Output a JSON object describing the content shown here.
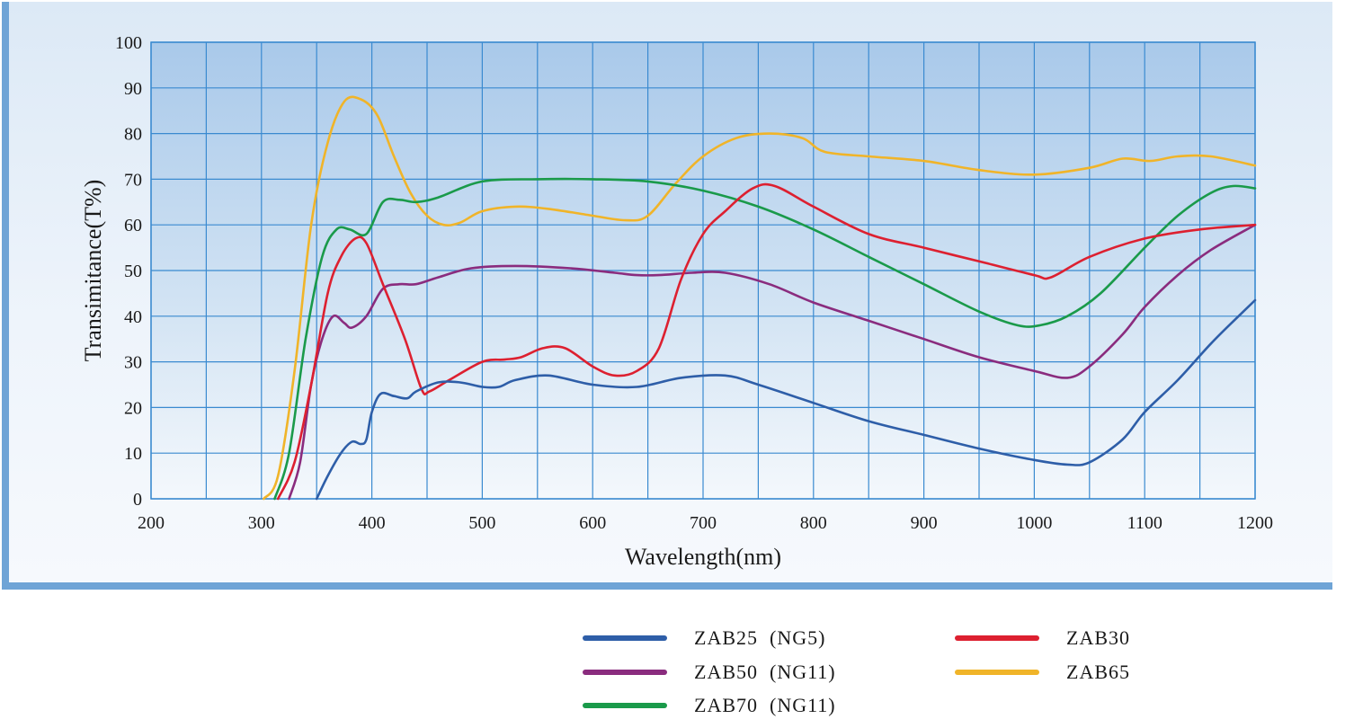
{
  "chart_data": {
    "type": "line",
    "title": "",
    "xlabel": "Wavelength(nm)",
    "ylabel": "Transimitance(T%)",
    "xlim": [
      200,
      1200
    ],
    "ylim": [
      0,
      100
    ],
    "xticks": [
      200,
      300,
      400,
      500,
      600,
      700,
      800,
      900,
      1000,
      1100,
      1200
    ],
    "yticks": [
      0,
      10,
      20,
      30,
      40,
      50,
      60,
      70,
      80,
      90,
      100
    ],
    "grid": true,
    "legend_position": "bottom-right",
    "series": [
      {
        "name": "ZAB25  (NG5)",
        "color": "#2e5ea8",
        "points": [
          [
            350,
            0
          ],
          [
            360,
            5
          ],
          [
            372,
            10
          ],
          [
            382,
            12.5
          ],
          [
            390,
            12
          ],
          [
            395,
            13
          ],
          [
            400,
            19
          ],
          [
            408,
            23
          ],
          [
            420,
            22.5
          ],
          [
            432,
            22
          ],
          [
            440,
            23.5
          ],
          [
            460,
            25.5
          ],
          [
            480,
            25.5
          ],
          [
            500,
            24.5
          ],
          [
            515,
            24.5
          ],
          [
            530,
            26
          ],
          [
            560,
            27
          ],
          [
            600,
            25
          ],
          [
            640,
            24.5
          ],
          [
            680,
            26.5
          ],
          [
            720,
            27
          ],
          [
            750,
            25
          ],
          [
            800,
            21
          ],
          [
            850,
            17
          ],
          [
            900,
            14
          ],
          [
            950,
            11
          ],
          [
            1000,
            8.5
          ],
          [
            1030,
            7.5
          ],
          [
            1050,
            8
          ],
          [
            1080,
            13
          ],
          [
            1100,
            19
          ],
          [
            1130,
            26
          ],
          [
            1160,
            34
          ],
          [
            1185,
            40
          ],
          [
            1200,
            43.5
          ]
        ]
      },
      {
        "name": "ZAB30",
        "color": "#dd2030",
        "points": [
          [
            315,
            0
          ],
          [
            330,
            8
          ],
          [
            345,
            25
          ],
          [
            360,
            45
          ],
          [
            372,
            53
          ],
          [
            385,
            57
          ],
          [
            395,
            56
          ],
          [
            410,
            47
          ],
          [
            430,
            35
          ],
          [
            445,
            24
          ],
          [
            452,
            23.5
          ],
          [
            470,
            26
          ],
          [
            500,
            30
          ],
          [
            520,
            30.5
          ],
          [
            535,
            31
          ],
          [
            555,
            33
          ],
          [
            575,
            33
          ],
          [
            600,
            29
          ],
          [
            620,
            27
          ],
          [
            640,
            28
          ],
          [
            660,
            33
          ],
          [
            680,
            48
          ],
          [
            700,
            58
          ],
          [
            720,
            63
          ],
          [
            745,
            68
          ],
          [
            765,
            68.5
          ],
          [
            800,
            64
          ],
          [
            850,
            58
          ],
          [
            900,
            55
          ],
          [
            950,
            52
          ],
          [
            1000,
            49
          ],
          [
            1015,
            48.5
          ],
          [
            1050,
            53
          ],
          [
            1100,
            57
          ],
          [
            1150,
            59
          ],
          [
            1200,
            60
          ]
        ]
      },
      {
        "name": "ZAB50  (NG11)",
        "color": "#8a2c7e",
        "points": [
          [
            325,
            0
          ],
          [
            335,
            8
          ],
          [
            345,
            25
          ],
          [
            355,
            35
          ],
          [
            365,
            40
          ],
          [
            375,
            38.5
          ],
          [
            382,
            37.5
          ],
          [
            395,
            40
          ],
          [
            410,
            46
          ],
          [
            425,
            47
          ],
          [
            440,
            47
          ],
          [
            460,
            48.5
          ],
          [
            490,
            50.5
          ],
          [
            530,
            51
          ],
          [
            580,
            50.5
          ],
          [
            620,
            49.5
          ],
          [
            640,
            49
          ],
          [
            660,
            49
          ],
          [
            690,
            49.5
          ],
          [
            720,
            49.5
          ],
          [
            760,
            47
          ],
          [
            800,
            43
          ],
          [
            850,
            39
          ],
          [
            900,
            35
          ],
          [
            950,
            31
          ],
          [
            1000,
            28
          ],
          [
            1030,
            26.5
          ],
          [
            1050,
            29
          ],
          [
            1080,
            36
          ],
          [
            1100,
            42
          ],
          [
            1130,
            49
          ],
          [
            1160,
            54.5
          ],
          [
            1200,
            60
          ]
        ]
      },
      {
        "name": "ZAB65",
        "color": "#f0b429",
        "points": [
          [
            302,
            0
          ],
          [
            315,
            5
          ],
          [
            330,
            28
          ],
          [
            345,
            60
          ],
          [
            360,
            78
          ],
          [
            375,
            87
          ],
          [
            390,
            87.5
          ],
          [
            405,
            84
          ],
          [
            420,
            75
          ],
          [
            435,
            67
          ],
          [
            450,
            62
          ],
          [
            465,
            60
          ],
          [
            480,
            60.5
          ],
          [
            500,
            63
          ],
          [
            530,
            64
          ],
          [
            560,
            63.5
          ],
          [
            600,
            62
          ],
          [
            630,
            61
          ],
          [
            650,
            62
          ],
          [
            675,
            69
          ],
          [
            700,
            75
          ],
          [
            730,
            79
          ],
          [
            760,
            80
          ],
          [
            790,
            79
          ],
          [
            810,
            76
          ],
          [
            850,
            75
          ],
          [
            900,
            74
          ],
          [
            950,
            72
          ],
          [
            1000,
            71
          ],
          [
            1050,
            72.5
          ],
          [
            1080,
            74.5
          ],
          [
            1105,
            74
          ],
          [
            1130,
            75
          ],
          [
            1160,
            75
          ],
          [
            1200,
            73
          ]
        ]
      },
      {
        "name": "ZAB70  (NG11)",
        "color": "#1a9a4a",
        "points": [
          [
            312,
            0
          ],
          [
            325,
            10
          ],
          [
            340,
            35
          ],
          [
            355,
            53
          ],
          [
            368,
            59
          ],
          [
            380,
            59
          ],
          [
            395,
            58
          ],
          [
            410,
            65
          ],
          [
            425,
            65.5
          ],
          [
            440,
            65
          ],
          [
            460,
            66
          ],
          [
            500,
            69.5
          ],
          [
            550,
            70
          ],
          [
            600,
            70
          ],
          [
            650,
            69.5
          ],
          [
            700,
            67.5
          ],
          [
            750,
            64
          ],
          [
            800,
            59
          ],
          [
            850,
            53
          ],
          [
            900,
            47
          ],
          [
            950,
            41
          ],
          [
            985,
            38
          ],
          [
            1005,
            38
          ],
          [
            1030,
            40
          ],
          [
            1060,
            45
          ],
          [
            1100,
            55
          ],
          [
            1130,
            62
          ],
          [
            1160,
            67
          ],
          [
            1180,
            68.5
          ],
          [
            1200,
            68
          ]
        ]
      }
    ]
  }
}
